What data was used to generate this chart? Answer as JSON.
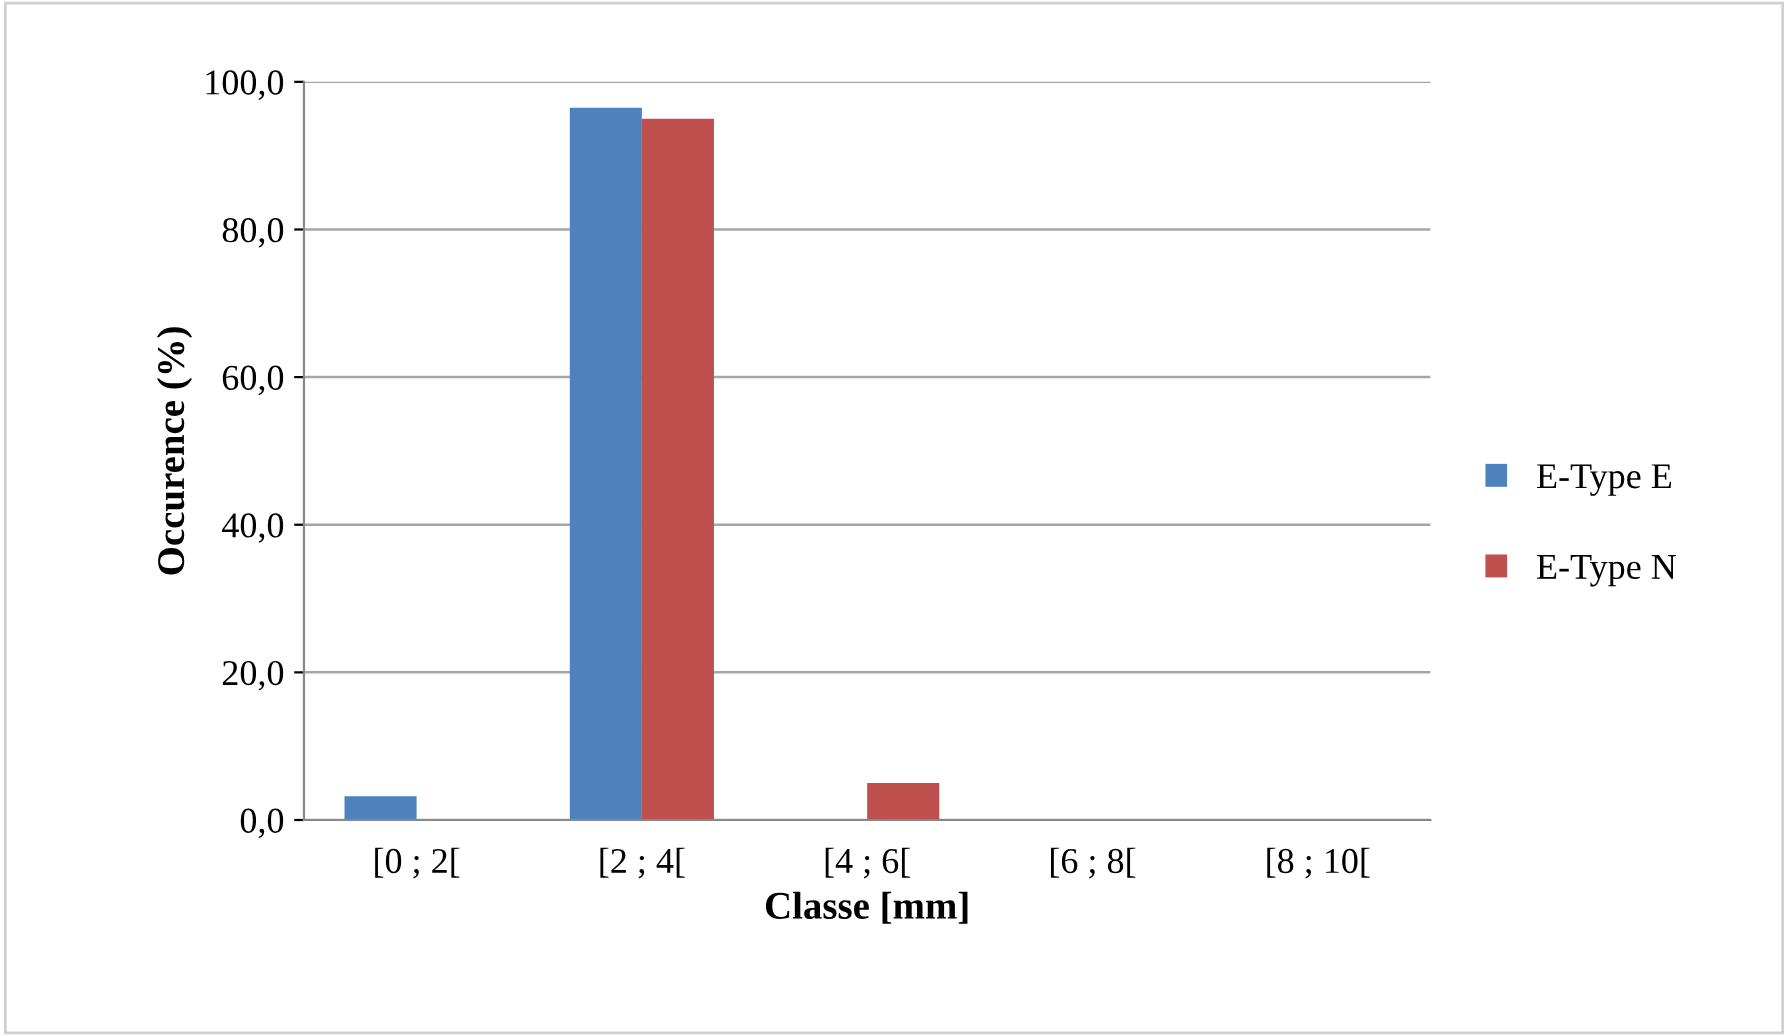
{
  "chart_data": {
    "type": "bar",
    "xlabel": "Classe [mm]",
    "ylabel": "Occurence (%)",
    "categories": [
      "[0 ; 2[",
      "[2 ; 4[",
      "[4 ; 6[",
      "[6 ; 8[",
      "[8 ; 10["
    ],
    "series": [
      {
        "name": "E-Type E",
        "color": "#4f81bd",
        "values": [
          3.2,
          96.5,
          0,
          0,
          0
        ]
      },
      {
        "name": "E-Type N",
        "color": "#c0504d",
        "values": [
          0,
          95.0,
          5.0,
          0,
          0
        ]
      }
    ],
    "ylim": [
      0,
      100
    ],
    "yticks": [
      {
        "value": 0,
        "label": "0,0"
      },
      {
        "value": 20,
        "label": "20,0"
      },
      {
        "value": 40,
        "label": "40,0"
      },
      {
        "value": 60,
        "label": "60,0"
      },
      {
        "value": 80,
        "label": "80,0"
      },
      {
        "value": 100,
        "label": "100,0"
      }
    ],
    "grid": "y",
    "legend": "right"
  }
}
